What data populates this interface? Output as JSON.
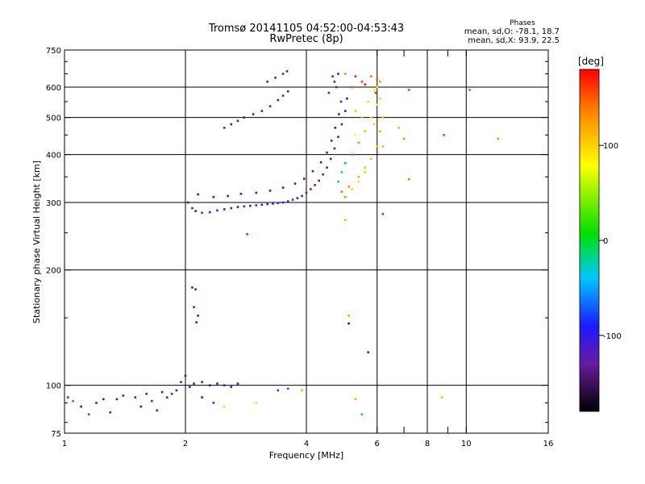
{
  "chart_data": {
    "type": "scatter",
    "title": "Tromsø 20141105 04:52:00-04:53:43",
    "subtitle": "RwPretec (8p)",
    "xlabel": "Frequency [MHz]",
    "ylabel": "Stationary phase Virtual Height [km]",
    "x_scale": "log",
    "y_scale": "log",
    "xlim": [
      1,
      16
    ],
    "ylim": [
      75,
      750
    ],
    "x_ticks": [
      1,
      2,
      4,
      6,
      8,
      10,
      16
    ],
    "x_tick_labels": [
      "1",
      "2",
      "4",
      "6",
      "8",
      "10",
      "16"
    ],
    "x_grid": [
      2,
      4,
      6,
      8,
      10
    ],
    "x_minor": [
      7,
      9
    ],
    "y_ticks": [
      75,
      100,
      200,
      300,
      400,
      500,
      600,
      750
    ],
    "y_tick_labels": [
      "75",
      "100",
      "200",
      "300",
      "400",
      "500",
      "600",
      "750"
    ],
    "y_grid": [
      100,
      200,
      300,
      400,
      500,
      600
    ],
    "grid": true,
    "stats": {
      "header": "Phases",
      "line_o": "mean, sd,O: -78.1, 18.7",
      "line_x": "mean, sd,X:  93.9, 22.5"
    },
    "colorbar": {
      "label": "[deg]",
      "range": [
        -180,
        180
      ],
      "ticks": [
        100,
        0,
        -100
      ],
      "tick_labels": [
        "100",
        "0",
        "-100"
      ]
    },
    "series": [
      {
        "points": [
          [
            2.03,
            300,
            -110
          ],
          [
            2.08,
            290,
            -120
          ],
          [
            2.12,
            285,
            -100
          ],
          [
            2.2,
            282,
            -130
          ],
          [
            2.3,
            283,
            -115
          ],
          [
            2.4,
            286,
            -125
          ],
          [
            2.5,
            288,
            -105
          ],
          [
            2.6,
            290,
            -120
          ],
          [
            2.7,
            292,
            -110
          ],
          [
            2.8,
            293,
            -130
          ],
          [
            2.9,
            294,
            -100
          ],
          [
            3.0,
            295,
            -120
          ],
          [
            3.1,
            296,
            -110
          ],
          [
            3.2,
            297,
            -125
          ],
          [
            3.3,
            298,
            -115
          ],
          [
            3.4,
            299,
            -105
          ],
          [
            3.5,
            300,
            -120
          ],
          [
            3.6,
            302,
            -110
          ],
          [
            3.7,
            305,
            -130
          ],
          [
            3.8,
            308,
            -100
          ],
          [
            3.9,
            312,
            -115
          ],
          [
            4.0,
            318,
            -120
          ],
          [
            4.1,
            325,
            -110
          ],
          [
            4.2,
            333,
            -125
          ],
          [
            4.3,
            342,
            -105
          ],
          [
            4.4,
            355,
            -120
          ],
          [
            4.5,
            370,
            -110
          ],
          [
            4.6,
            390,
            -115
          ],
          [
            4.7,
            415,
            -120
          ],
          [
            4.8,
            445,
            -105
          ],
          [
            4.9,
            480,
            -110
          ],
          [
            5.0,
            520,
            -100
          ],
          [
            5.05,
            560,
            -95
          ],
          [
            4.75,
            600,
            -115
          ],
          [
            4.65,
            640,
            -120
          ],
          [
            2.15,
            315,
            -95
          ],
          [
            2.35,
            310,
            -90
          ],
          [
            2.55,
            312,
            -100
          ],
          [
            2.75,
            316,
            -105
          ],
          [
            3.0,
            318,
            -110
          ],
          [
            3.25,
            322,
            -95
          ],
          [
            3.5,
            328,
            -100
          ],
          [
            3.75,
            336,
            -110
          ],
          [
            3.95,
            346,
            -105
          ],
          [
            4.15,
            362,
            -110
          ],
          [
            4.35,
            382,
            -100
          ],
          [
            4.5,
            405,
            -105
          ],
          [
            4.62,
            435,
            -110
          ],
          [
            4.72,
            470,
            -100
          ],
          [
            4.82,
            510,
            -105
          ],
          [
            4.88,
            550,
            -110
          ],
          [
            4.55,
            580,
            -120
          ],
          [
            4.7,
            620,
            -125
          ],
          [
            4.8,
            650,
            -110
          ],
          [
            2.5,
            470,
            -80
          ],
          [
            2.6,
            480,
            -90
          ],
          [
            2.7,
            490,
            -85
          ],
          [
            2.8,
            500,
            -100
          ],
          [
            2.95,
            510,
            -110
          ],
          [
            3.1,
            520,
            -105
          ],
          [
            3.25,
            535,
            -110
          ],
          [
            3.4,
            555,
            -115
          ],
          [
            3.5,
            570,
            -120
          ],
          [
            3.6,
            585,
            -110
          ],
          [
            3.2,
            620,
            -115
          ],
          [
            3.35,
            635,
            -120
          ],
          [
            3.5,
            650,
            -125
          ],
          [
            3.58,
            660,
            -110
          ],
          [
            1.02,
            93,
            -80
          ],
          [
            1.05,
            91,
            -60
          ],
          [
            1.1,
            88,
            -90
          ],
          [
            1.2,
            90,
            -110
          ],
          [
            1.25,
            92,
            -100
          ],
          [
            1.35,
            92,
            -120
          ],
          [
            1.4,
            94,
            -110
          ],
          [
            1.5,
            93,
            -130
          ],
          [
            1.6,
            95,
            -115
          ],
          [
            1.65,
            91,
            -120
          ],
          [
            1.75,
            96,
            -105
          ],
          [
            1.8,
            93,
            -110
          ],
          [
            1.85,
            95,
            -125
          ],
          [
            1.9,
            97,
            -100
          ],
          [
            1.95,
            102,
            -110
          ],
          [
            2.0,
            106,
            -105
          ],
          [
            2.05,
            99,
            -115
          ],
          [
            2.1,
            101,
            -100
          ],
          [
            2.2,
            102,
            -110
          ],
          [
            2.3,
            100,
            -105
          ],
          [
            2.4,
            101,
            -95
          ],
          [
            2.5,
            100,
            -110
          ],
          [
            2.6,
            99,
            -100
          ],
          [
            2.7,
            101,
            -90
          ],
          [
            2.2,
            93,
            -95
          ],
          [
            2.35,
            90,
            -80
          ],
          [
            1.15,
            84,
            -70
          ],
          [
            1.3,
            85,
            -110
          ],
          [
            1.55,
            88,
            -100
          ],
          [
            1.7,
            86,
            -120
          ],
          [
            3.4,
            97,
            -80
          ],
          [
            3.6,
            98,
            -70
          ],
          [
            2.08,
            180,
            -100
          ],
          [
            2.12,
            178,
            -110
          ],
          [
            2.1,
            160,
            -120
          ],
          [
            2.15,
            152,
            -105
          ],
          [
            2.13,
            146,
            -100
          ],
          [
            5.7,
            122,
            -140
          ],
          [
            5.1,
            145,
            -150
          ],
          [
            4.8,
            340,
            -20
          ],
          [
            4.9,
            360,
            -10
          ],
          [
            5.0,
            380,
            5
          ],
          [
            5.2,
            400,
            15
          ],
          [
            5.4,
            430,
            30
          ],
          [
            5.6,
            460,
            50
          ],
          [
            5.8,
            500,
            70
          ],
          [
            6.0,
            540,
            80
          ],
          [
            5.0,
            310,
            30
          ],
          [
            5.2,
            325,
            60
          ],
          [
            5.4,
            340,
            90
          ],
          [
            5.6,
            360,
            100
          ],
          [
            5.8,
            390,
            110
          ],
          [
            6.0,
            420,
            115
          ],
          [
            6.1,
            460,
            120
          ],
          [
            6.2,
            500,
            110
          ],
          [
            6.1,
            560,
            100
          ],
          [
            6.0,
            600,
            95
          ],
          [
            5.3,
            450,
            80
          ],
          [
            5.5,
            500,
            100
          ],
          [
            5.7,
            550,
            95
          ],
          [
            5.9,
            590,
            90
          ],
          [
            6.1,
            620,
            120
          ],
          [
            5.2,
            600,
            150
          ],
          [
            5.5,
            620,
            160
          ],
          [
            5.8,
            640,
            140
          ],
          [
            6.0,
            630,
            150
          ],
          [
            5.3,
            520,
            110
          ],
          [
            4.9,
            320,
            140
          ],
          [
            5.1,
            330,
            130
          ],
          [
            5.4,
            350,
            120
          ],
          [
            5.6,
            370,
            110
          ],
          [
            5.9,
            480,
            100
          ],
          [
            6.2,
            420,
            110
          ],
          [
            5.0,
            650,
            130
          ],
          [
            5.3,
            640,
            170
          ],
          [
            5.6,
            610,
            175
          ],
          [
            5.95,
            580,
            165
          ],
          [
            7.2,
            590,
            160
          ],
          [
            10.2,
            590,
            150
          ],
          [
            6.8,
            470,
            115
          ],
          [
            7.0,
            440,
            130
          ],
          [
            8.8,
            450,
            160
          ],
          [
            12.0,
            440,
            130
          ],
          [
            6.2,
            280,
            170
          ],
          [
            7.2,
            345,
            140
          ],
          [
            5.0,
            270,
            110
          ],
          [
            2.85,
            248,
            170
          ],
          [
            5.1,
            152,
            120
          ],
          [
            5.3,
            92,
            120
          ],
          [
            8.7,
            93,
            110
          ],
          [
            5.5,
            84,
            -20
          ],
          [
            3.0,
            90,
            90
          ],
          [
            3.9,
            97,
            120
          ],
          [
            2.5,
            88,
            95
          ]
        ]
      }
    ]
  }
}
